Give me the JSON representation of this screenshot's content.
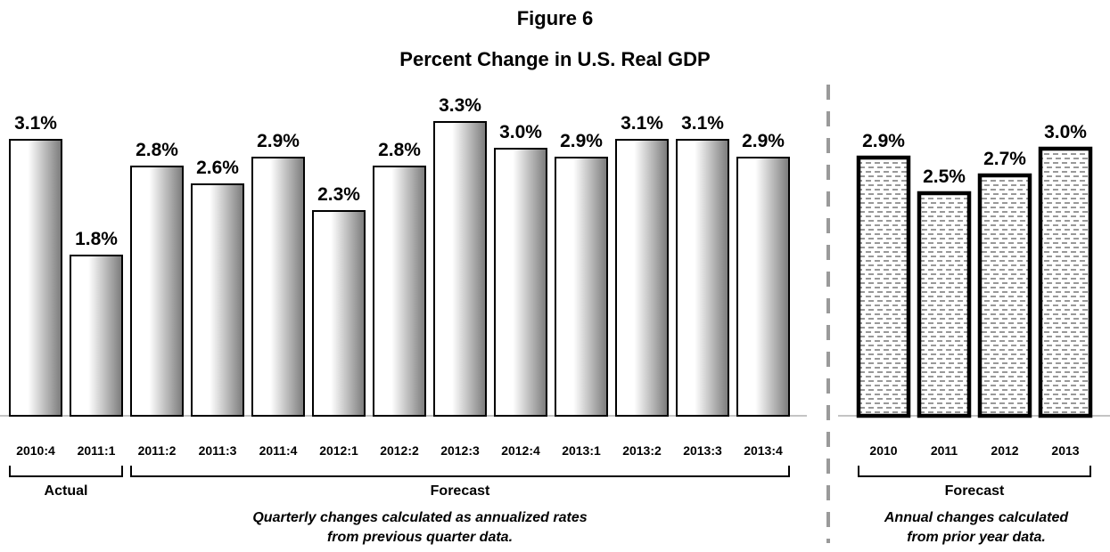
{
  "figure": {
    "title": "Figure 6",
    "subtitle": "Percent Change in U.S. Real GDP"
  },
  "chart_data": [
    {
      "type": "bar",
      "style": "gradient",
      "categories": [
        "2010:4",
        "2011:1",
        "2011:2",
        "2011:3",
        "2011:4",
        "2012:1",
        "2012:2",
        "2012:3",
        "2012:4",
        "2013:1",
        "2013:2",
        "2013:3",
        "2013:4"
      ],
      "values": [
        3.1,
        1.8,
        2.8,
        2.6,
        2.9,
        2.3,
        2.8,
        3.3,
        3.0,
        2.9,
        3.1,
        3.1,
        2.9
      ],
      "value_labels": [
        "3.1%",
        "1.8%",
        "2.8%",
        "2.6%",
        "2.9%",
        "2.3%",
        "2.8%",
        "3.3%",
        "3.0%",
        "2.9%",
        "3.1%",
        "3.1%",
        "2.9%"
      ],
      "groups": [
        {
          "label": "Actual",
          "from": 0,
          "to": 1
        },
        {
          "label": "Forecast",
          "from": 2,
          "to": 12
        }
      ],
      "note": [
        "Quarterly changes calculated as annualized rates",
        "from previous quarter data."
      ],
      "ylim": [
        0,
        3.5
      ],
      "grid": false
    },
    {
      "type": "bar",
      "style": "hatched",
      "categories": [
        "2010",
        "2011",
        "2012",
        "2013"
      ],
      "values": [
        2.9,
        2.5,
        2.7,
        3.0
      ],
      "value_labels": [
        "2.9%",
        "2.5%",
        "2.7%",
        "3.0%"
      ],
      "groups": [
        {
          "label": "Forecast",
          "from": 0,
          "to": 3
        }
      ],
      "note": [
        "Annual changes calculated",
        "from prior year data."
      ],
      "ylim": [
        0,
        3.5
      ],
      "grid": false
    }
  ],
  "colors": {
    "bar_outline": "#000000",
    "gradient_light": "#ffffff",
    "gradient_dark": "#7a7a7a",
    "hatch": "#555555",
    "divider": "#9a9a9a",
    "axis": "#b0b0b0"
  }
}
